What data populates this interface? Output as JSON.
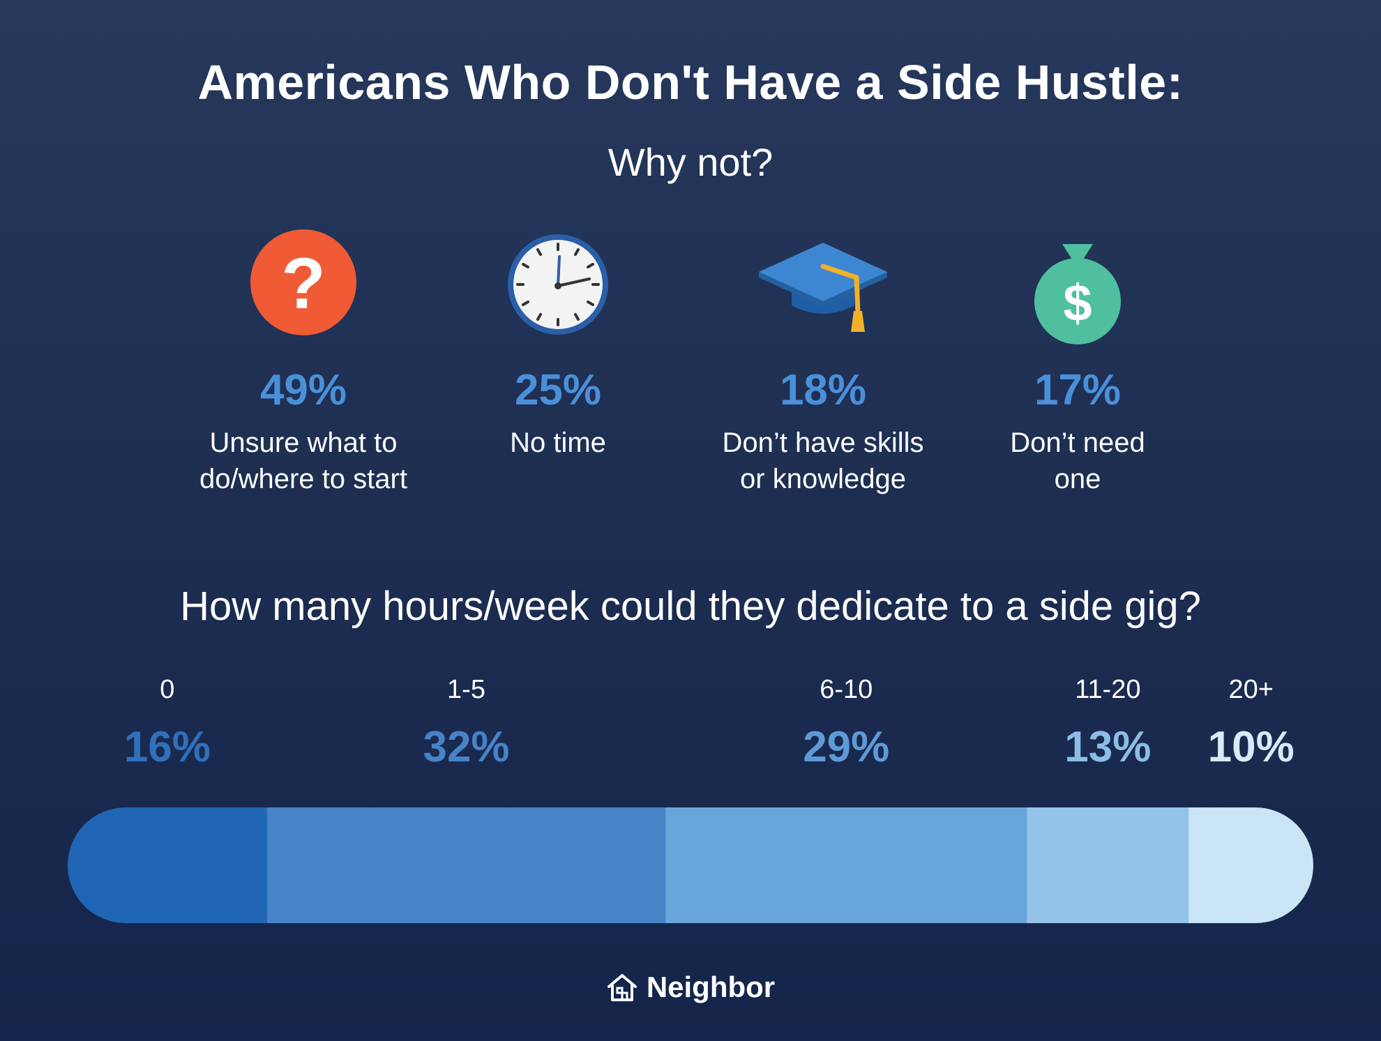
{
  "title": "Americans Who Don't Have a Side Hustle:",
  "subtitle": "Why not?",
  "reasons": [
    {
      "percent": "49%",
      "label_line1": "Unsure what to",
      "label_line2": "do/where to start",
      "icon": "question-icon"
    },
    {
      "percent": "25%",
      "label_line1": "No time",
      "label_line2": "",
      "icon": "clock-icon"
    },
    {
      "percent": "18%",
      "label_line1": "Don’t have skills",
      "label_line2": "or knowledge",
      "icon": "graduation-cap-icon"
    },
    {
      "percent": "17%",
      "label_line1": "Don’t need",
      "label_line2": "one",
      "icon": "money-bag-icon"
    }
  ],
  "question": "How many hours/week could they dedicate to a side gig?",
  "colors": {
    "accent": "#4a90d9",
    "question_icon": "#f05a35",
    "money_icon": "#4fbf9f",
    "cap": "#2f78c8",
    "tassel": "#f2b02a"
  },
  "brand": "Neighbor",
  "chart_data": {
    "type": "bar",
    "orientation": "horizontal-stacked",
    "title": "How many hours/week could they dedicate to a side gig?",
    "categories": [
      "0",
      "1-5",
      "6-10",
      "11-20",
      "20+"
    ],
    "values": [
      16,
      32,
      29,
      13,
      10
    ],
    "value_labels": [
      "16%",
      "32%",
      "29%",
      "13%",
      "10%"
    ],
    "colors": [
      "#2066b4",
      "#4683c7",
      "#68a5da",
      "#94c3e8",
      "#c9e5f6"
    ],
    "label_colors": [
      "#2f70bd",
      "#4683c7",
      "#5d9bd6",
      "#8cbde5",
      "#d5ebf8"
    ]
  }
}
